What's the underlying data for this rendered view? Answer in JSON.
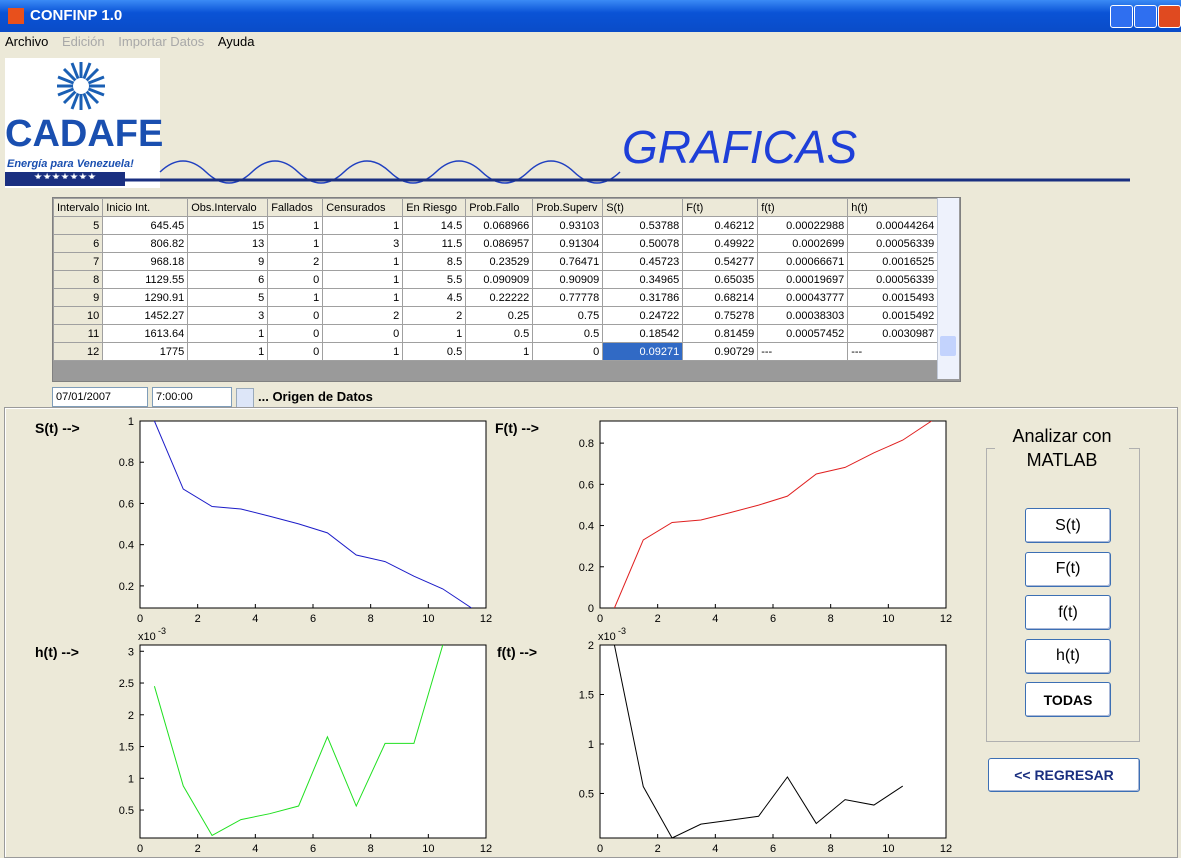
{
  "window": {
    "title": "CONFINP 1.0"
  },
  "menu": [
    "Archivo",
    "Edición",
    "Importar Datos",
    "Ayuda"
  ],
  "logo": {
    "name": "CADAFE",
    "slogan": "Energía para Venezuela!",
    "stars": "★★★★★★★"
  },
  "heading": "GRAFICAS",
  "table": {
    "columns": [
      "Intervalo",
      "Inicio Int.",
      "Obs.Intervalo",
      "Fallados",
      "Censurados",
      "En Riesgo",
      "Prob.Fallo",
      "Prob.Superv",
      "S(t)",
      "F(t)",
      "f(t)",
      "h(t)"
    ],
    "rows": [
      [
        "5",
        "645.45",
        "15",
        "1",
        "1",
        "14.5",
        "0.068966",
        "0.93103",
        "0.53788",
        "0.46212",
        "0.00022988",
        "0.00044264"
      ],
      [
        "6",
        "806.82",
        "13",
        "1",
        "3",
        "11.5",
        "0.086957",
        "0.91304",
        "0.50078",
        "0.49922",
        "0.0002699",
        "0.00056339"
      ],
      [
        "7",
        "968.18",
        "9",
        "2",
        "1",
        "8.5",
        "0.23529",
        "0.76471",
        "0.45723",
        "0.54277",
        "0.00066671",
        "0.0016525"
      ],
      [
        "8",
        "1129.55",
        "6",
        "0",
        "1",
        "5.5",
        "0.090909",
        "0.90909",
        "0.34965",
        "0.65035",
        "0.00019697",
        "0.00056339"
      ],
      [
        "9",
        "1290.91",
        "5",
        "1",
        "1",
        "4.5",
        "0.22222",
        "0.77778",
        "0.31786",
        "0.68214",
        "0.00043777",
        "0.0015493"
      ],
      [
        "10",
        "1452.27",
        "3",
        "0",
        "2",
        "2",
        "0.25",
        "0.75",
        "0.24722",
        "0.75278",
        "0.00038303",
        "0.0015492"
      ],
      [
        "11",
        "1613.64",
        "1",
        "0",
        "0",
        "1",
        "0.5",
        "0.5",
        "0.18542",
        "0.81459",
        "0.00057452",
        "0.0030987"
      ],
      [
        "12",
        "1775",
        "1",
        "0",
        "1",
        "0.5",
        "1",
        "0",
        "0.09271",
        "0.90729",
        "---",
        "---"
      ]
    ]
  },
  "date_controls": {
    "date": "07/01/2007",
    "time": "7:00:00",
    "source_label": "... Origen de Datos"
  },
  "chart_data": [
    {
      "type": "line",
      "label": "S(t) -->",
      "color": "#1c1cc8",
      "x": [
        0.5,
        1.5,
        2.5,
        3.5,
        4.5,
        5.5,
        6.5,
        7.5,
        8.5,
        9.5,
        10.5,
        11.5
      ],
      "values": [
        1,
        0.67,
        0.585,
        0.573,
        0.53788,
        0.50078,
        0.45723,
        0.34965,
        0.31786,
        0.24722,
        0.18542,
        0.09271
      ],
      "xlim": [
        0,
        12
      ],
      "xticks": [
        0,
        2,
        4,
        6,
        8,
        10,
        12
      ],
      "ylim": [
        0.09271,
        1
      ],
      "yticks": [
        0.2,
        0.4,
        0.6,
        0.8,
        1
      ]
    },
    {
      "type": "line",
      "label": "F(t) -->",
      "color": "#e02020",
      "x": [
        0.5,
        1.5,
        2.5,
        3.5,
        4.5,
        5.5,
        6.5,
        7.5,
        8.5,
        9.5,
        10.5,
        11.5
      ],
      "values": [
        0,
        0.33,
        0.415,
        0.427,
        0.46212,
        0.49922,
        0.54277,
        0.65035,
        0.68214,
        0.75278,
        0.81459,
        0.90729
      ],
      "xlim": [
        0,
        12
      ],
      "xticks": [
        0,
        2,
        4,
        6,
        8,
        10,
        12
      ],
      "ylim": [
        0,
        0.90729
      ],
      "yticks": [
        0,
        0.2,
        0.4,
        0.6,
        0.8
      ]
    },
    {
      "type": "line",
      "label": "h(t) -->",
      "color": "#20e020",
      "x": [
        0.5,
        1.5,
        2.5,
        3.5,
        4.5,
        5.5,
        6.5,
        7.5,
        8.5,
        9.5,
        10.5
      ],
      "values": [
        2.45,
        0.88,
        0.1,
        0.35,
        0.44264,
        0.56339,
        1.6525,
        0.56339,
        1.5493,
        1.5492,
        3.0987
      ],
      "xlim": [
        0,
        12
      ],
      "xticks": [
        0,
        2,
        4,
        6,
        8,
        10,
        12
      ],
      "ylim": [
        0.06,
        3.0987
      ],
      "yticks": [
        0.5,
        1,
        1.5,
        2,
        2.5,
        3
      ],
      "y_multiplier": {
        "base": "x10",
        "exponent": "-3"
      }
    },
    {
      "type": "line",
      "label": "f(t) -->",
      "color": "#000000",
      "x": [
        0.5,
        1.5,
        2.5,
        3.5,
        4.5,
        5.5,
        6.5,
        7.5,
        8.5,
        9.5,
        10.5
      ],
      "values": [
        2,
        0.57,
        0.05,
        0.19,
        0.22988,
        0.2699,
        0.66671,
        0.19697,
        0.43777,
        0.38303,
        0.57452
      ],
      "xlim": [
        0,
        12
      ],
      "xticks": [
        0,
        2,
        4,
        6,
        8,
        10,
        12
      ],
      "ylim": [
        0.05,
        2
      ],
      "yticks": [
        0.5,
        1,
        1.5,
        2
      ],
      "y_multiplier": {
        "base": "x10",
        "exponent": "-3"
      }
    }
  ],
  "matlab_panel": {
    "title": "Analizar con MATLAB",
    "buttons": [
      "S(t)",
      "F(t)",
      "f(t)",
      "h(t)",
      "TODAS"
    ]
  },
  "back_button": "<< REGRESAR"
}
